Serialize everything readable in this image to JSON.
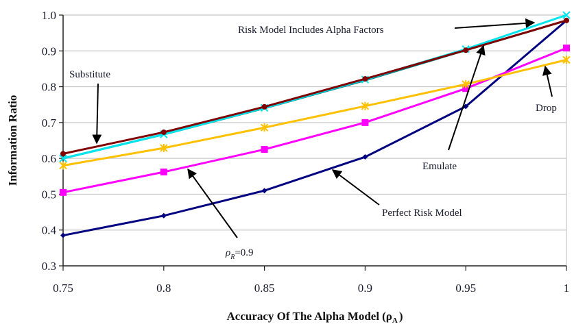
{
  "chart_data": {
    "type": "line",
    "title": "",
    "xlabel": "Accuracy Of The Alpha Model",
    "xlabel_symbol": "ρ",
    "xlabel_subscript": "A",
    "ylabel": "Information Ratio",
    "x": [
      0.75,
      0.8,
      0.85,
      0.9,
      0.95,
      1.0
    ],
    "xlim": [
      0.75,
      1.0
    ],
    "ylim": [
      0.3,
      1.0
    ],
    "x_ticks": [
      "0.75",
      "0.8",
      "0.85",
      "0.9",
      "0.95",
      "1"
    ],
    "y_ticks": [
      "0.3",
      "0.4",
      "0.5",
      "0.6",
      "0.7",
      "0.8",
      "0.9",
      "1.0"
    ],
    "x_tick_values": [
      0.75,
      0.8,
      0.85,
      0.9,
      0.95,
      1.0
    ],
    "y_tick_values": [
      0.3,
      0.4,
      0.5,
      0.6,
      0.7,
      0.8,
      0.9,
      1.0
    ],
    "grid": true,
    "legend": "none",
    "series": [
      {
        "name": "Perfect Risk Model",
        "color": "#000080",
        "marker": "diamond",
        "values": [
          0.385,
          0.44,
          0.51,
          0.604,
          0.745,
          0.985
        ]
      },
      {
        "name": "rho_R=0.9",
        "color": "#ff00ff",
        "marker": "square",
        "values": [
          0.505,
          0.562,
          0.625,
          0.7,
          0.795,
          0.908
        ]
      },
      {
        "name": "Drop",
        "color": "#ffc000",
        "marker": "x",
        "values": [
          0.58,
          0.629,
          0.686,
          0.746,
          0.807,
          0.875
        ]
      },
      {
        "name": "Emulate",
        "color": "#008080",
        "marker": "none",
        "values": [
          0.6,
          0.667,
          0.74,
          0.818,
          0.902,
          0.985
        ]
      },
      {
        "name": "Risk Model Includes Alpha Factors",
        "color": "#00e5ee",
        "marker": "star",
        "values": [
          0.6,
          0.667,
          0.741,
          0.82,
          0.905,
          1.0
        ]
      },
      {
        "name": "Substitute",
        "color": "#800000",
        "marker": "circle",
        "values": [
          0.613,
          0.673,
          0.744,
          0.822,
          0.902,
          0.985
        ]
      }
    ],
    "annotations": [
      {
        "text": "Substitute",
        "points_to_series": "Substitute"
      },
      {
        "text": "Risk Model Includes Alpha Factors",
        "points_to_series": "Risk Model Includes Alpha Factors"
      },
      {
        "text": "Drop",
        "points_to_series": "Drop"
      },
      {
        "text": "Emulate",
        "points_to_series": "Emulate"
      },
      {
        "text": "Perfect Risk Model",
        "points_to_series": "Perfect Risk Model"
      },
      {
        "text_symbol": "ρ",
        "text_subscript": "R",
        "text_rest": "=0.9",
        "points_to_series": "rho_R=0.9"
      }
    ]
  }
}
